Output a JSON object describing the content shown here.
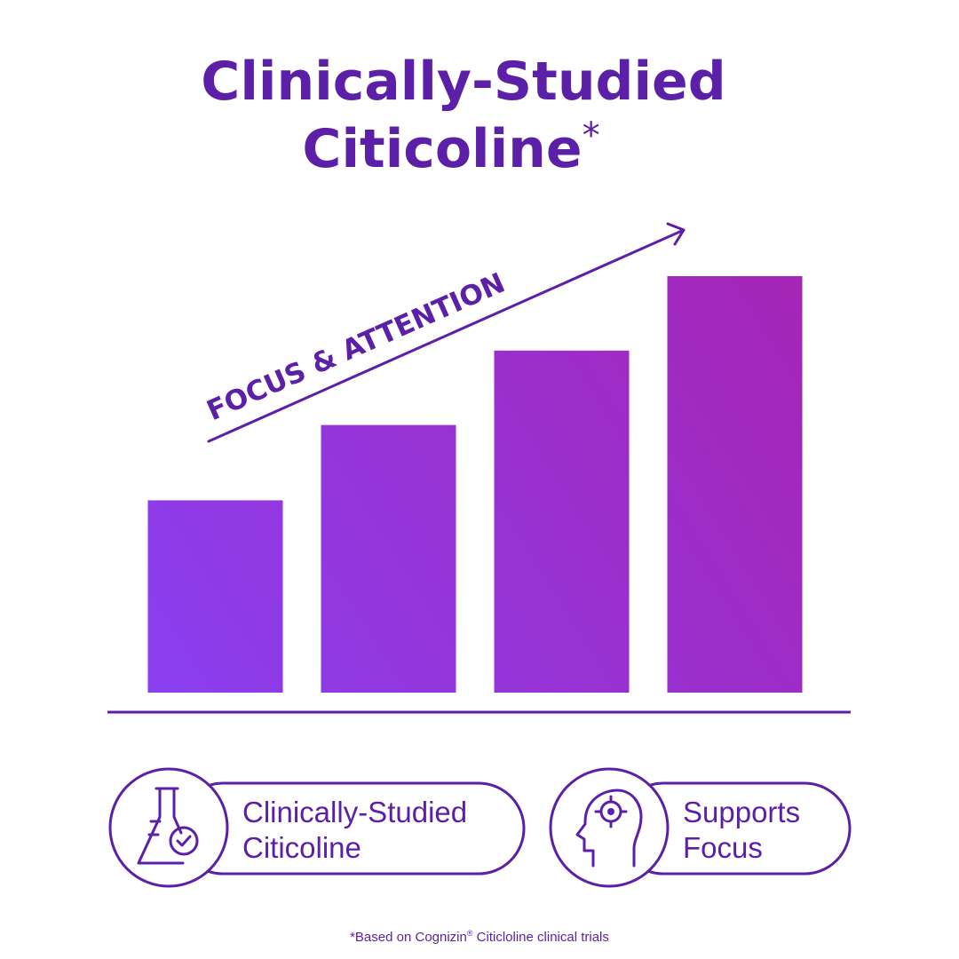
{
  "chart_data": {
    "type": "bar",
    "title_lines": [
      "Clinically-Studied",
      "Citicoline"
    ],
    "title_mark": "*",
    "annotation": "FOCUS & ATTENTION",
    "categories": [
      null,
      null,
      null,
      null
    ],
    "values": [
      217,
      302,
      386,
      470
    ],
    "ylim": [
      0,
      470
    ],
    "gradient": [
      "#8a3ff0",
      "#a624b4"
    ],
    "badges": [
      {
        "lines": [
          "Clinically-Studied",
          "Citicoline"
        ]
      },
      {
        "lines": [
          "Supports",
          "Focus"
        ]
      }
    ],
    "footnote": {
      "before": "*Based on Cognizin",
      "mark": "®",
      "after": " Citicloline clinical trials"
    }
  }
}
